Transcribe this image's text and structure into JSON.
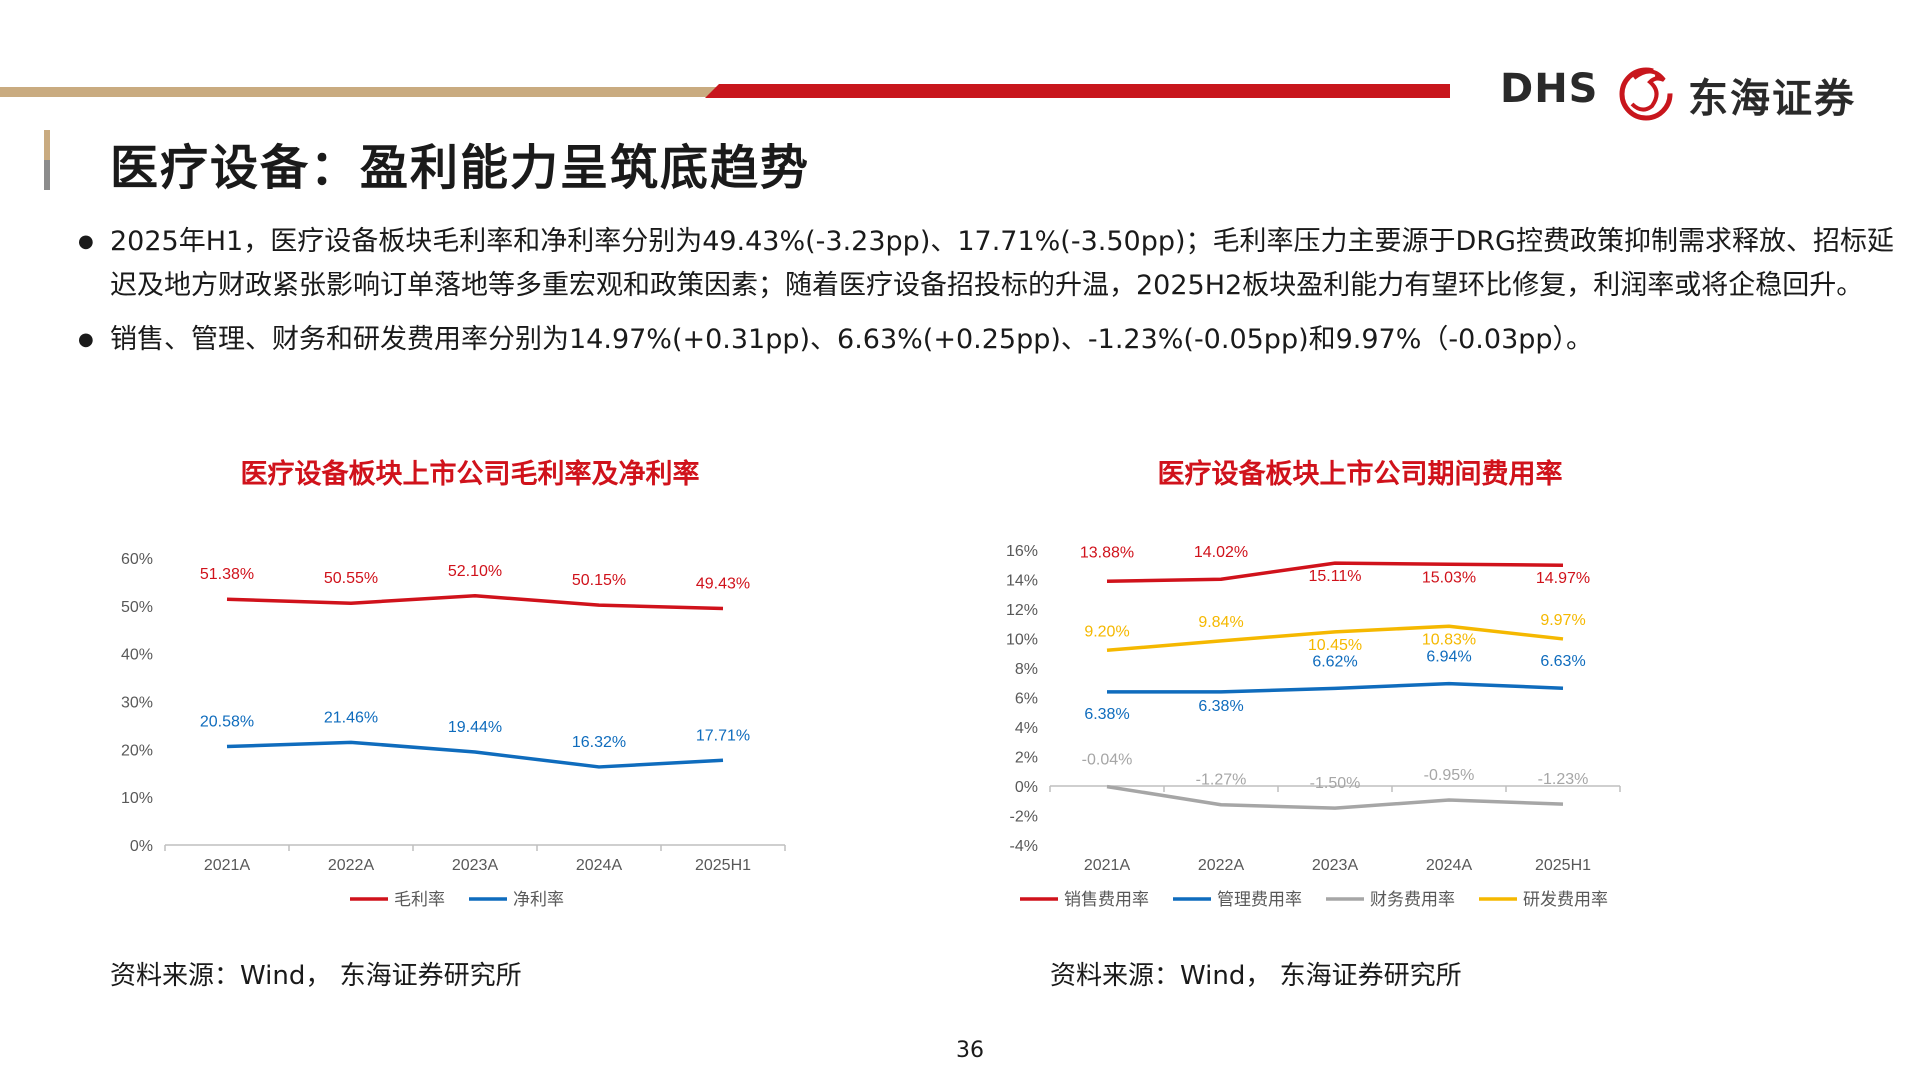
{
  "header": {
    "logo_latin": "DHS",
    "logo_cn": "东海证券"
  },
  "slide": {
    "title": "医疗设备：盈利能力呈筑底趋势",
    "bullets": [
      "2025年H1，医疗设备板块毛利率和净利率分别为49.43%(-3.23pp)、17.71%(-3.50pp)；毛利率压力主要源于DRG控费政策抑制需求释放、招标延迟及地方财政紧张影响订单落地等多重宏观和政策因素；随着医疗设备招投标的升温，2025H2板块盈利能力有望环比修复，利润率或将企稳回升。",
      "销售、管理、财务和研发费用率分别为14.97%(+0.31pp)、6.63%(+0.25pp)、-1.23%(-0.05pp)和9.97%（-0.03pp）。"
    ],
    "page_number": "36"
  },
  "colors": {
    "brand_red": "#c8161d",
    "brand_tan": "#c9ab80",
    "series_red": "#d0121b",
    "series_blue": "#0f6cbd",
    "series_gray": "#a6a6a6",
    "series_yellow": "#f5b800"
  },
  "chart_data": [
    {
      "type": "line",
      "title": "医疗设备板块上市公司毛利率及净利率",
      "categories": [
        "2021A",
        "2022A",
        "2023A",
        "2024A",
        "2025H1"
      ],
      "y_ticks": [
        "0%",
        "10%",
        "20%",
        "30%",
        "40%",
        "50%",
        "60%"
      ],
      "ylim": [
        0,
        60
      ],
      "grid": false,
      "legend_position": "bottom",
      "series": [
        {
          "name": "毛利率",
          "color": "#d0121b",
          "values": [
            51.38,
            50.55,
            52.1,
            50.15,
            49.43
          ],
          "labels": [
            "51.38%",
            "50.55%",
            "52.10%",
            "50.15%",
            "49.43%"
          ]
        },
        {
          "name": "净利率",
          "color": "#0f6cbd",
          "values": [
            20.58,
            21.46,
            19.44,
            16.32,
            17.71
          ],
          "labels": [
            "20.58%",
            "21.46%",
            "19.44%",
            "16.32%",
            "17.71%"
          ]
        }
      ],
      "source": "资料来源：Wind， 东海证券研究所"
    },
    {
      "type": "line",
      "title": "医疗设备板块上市公司期间费用率",
      "categories": [
        "2021A",
        "2022A",
        "2023A",
        "2024A",
        "2025H1"
      ],
      "y_ticks": [
        "-4%",
        "-2%",
        "0%",
        "2%",
        "4%",
        "6%",
        "8%",
        "10%",
        "12%",
        "14%",
        "16%"
      ],
      "ylim": [
        -4,
        16
      ],
      "grid": false,
      "legend_position": "bottom",
      "series": [
        {
          "name": "销售费用率",
          "color": "#d0121b",
          "values": [
            13.88,
            14.02,
            15.11,
            15.03,
            14.97
          ],
          "labels": [
            "13.88%",
            "14.02%",
            "15.11%",
            "15.03%",
            "14.97%"
          ]
        },
        {
          "name": "管理费用率",
          "color": "#0f6cbd",
          "values": [
            6.38,
            6.38,
            6.62,
            6.94,
            6.63
          ],
          "labels": [
            "6.38%",
            "6.38%",
            "6.62%",
            "6.94%",
            "6.63%"
          ]
        },
        {
          "name": "财务费用率",
          "color": "#a6a6a6",
          "values": [
            -0.04,
            -1.27,
            -1.5,
            -0.95,
            -1.23
          ],
          "labels": [
            "-0.04%",
            "-1.27%",
            "-1.50%",
            "-0.95%",
            "-1.23%"
          ]
        },
        {
          "name": "研发费用率",
          "color": "#f5b800",
          "values": [
            9.2,
            9.84,
            10.45,
            10.83,
            9.97
          ],
          "labels": [
            "9.20%",
            "9.84%",
            "10.45%",
            "10.83%",
            "9.97%"
          ]
        }
      ],
      "source": "资料来源：Wind， 东海证券研究所"
    }
  ]
}
